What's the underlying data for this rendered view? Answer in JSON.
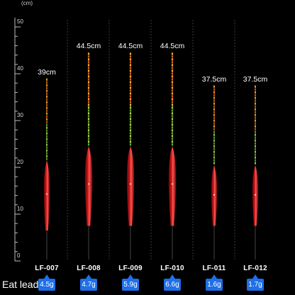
{
  "scale": {
    "unit": "(cm)",
    "ticks": [
      "50",
      "40",
      "30",
      "20",
      "10",
      "0"
    ],
    "tick_values": [
      50,
      40,
      30,
      20,
      10,
      0
    ]
  },
  "eat_lead_label": "Eat lead",
  "floats": [
    {
      "model": "LF-007",
      "length_label": "39cm",
      "length_cm": 39,
      "lead": "4.5g"
    },
    {
      "model": "LF-008",
      "length_label": "44.5cm",
      "length_cm": 44.5,
      "lead": "4.7g"
    },
    {
      "model": "LF-009",
      "length_label": "44.5cm",
      "length_cm": 44.5,
      "lead": "5.9g"
    },
    {
      "model": "LF-010",
      "length_label": "44.5cm",
      "length_cm": 44.5,
      "lead": "6.6g"
    },
    {
      "model": "LF-011",
      "length_label": "37.5cm",
      "length_cm": 37.5,
      "lead": "1.6g"
    },
    {
      "model": "LF-012",
      "length_label": "37.5cm",
      "length_cm": 37.5,
      "lead": "1.7g"
    }
  ],
  "colors": {
    "body": "#d81e1e",
    "tip_yellow": "#f0b020",
    "tip_green": "#4fae3a",
    "badge": "#1e6fe8"
  }
}
